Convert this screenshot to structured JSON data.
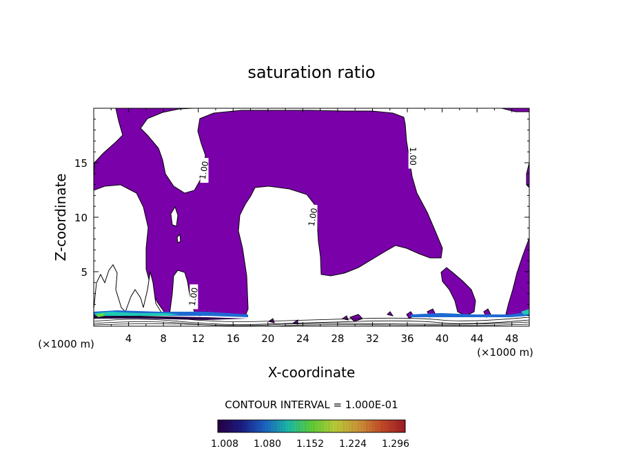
{
  "chart_data": {
    "type": "heatmap",
    "title": "saturation ratio",
    "xlabel": "X-coordinate",
    "ylabel": "Z-coordinate",
    "x_unit": "(×1000 m)",
    "z_unit": "(×1000 m)",
    "xlim": [
      0,
      50
    ],
    "ylim": [
      0,
      20
    ],
    "x_ticks": [
      4,
      8,
      12,
      16,
      20,
      24,
      28,
      32,
      36,
      40,
      44,
      48
    ],
    "y_ticks": [
      5,
      10,
      15
    ],
    "contour_interval_label": "CONTOUR INTERVAL = 1.000E-01",
    "contour_labels": [
      {
        "text": "1.00",
        "x": 12.7,
        "z": 14.3
      },
      {
        "text": "1.00",
        "x": 36.6,
        "z": 15.6
      },
      {
        "text": "1.00",
        "x": 25.2,
        "z": 10.0
      },
      {
        "text": "1.00",
        "x": 11.5,
        "z": 2.7
      }
    ],
    "fill_color": "#7a00aa",
    "colorbar": {
      "ticks": [
        "1.008",
        "1.080",
        "1.152",
        "1.224",
        "1.296"
      ],
      "colors": [
        "#2a004a",
        "#1e1e8c",
        "#1e6ad2",
        "#1ec8b4",
        "#64dc3c",
        "#c8dc3c",
        "#dca03c",
        "#d2502a",
        "#aa1e28"
      ]
    }
  }
}
